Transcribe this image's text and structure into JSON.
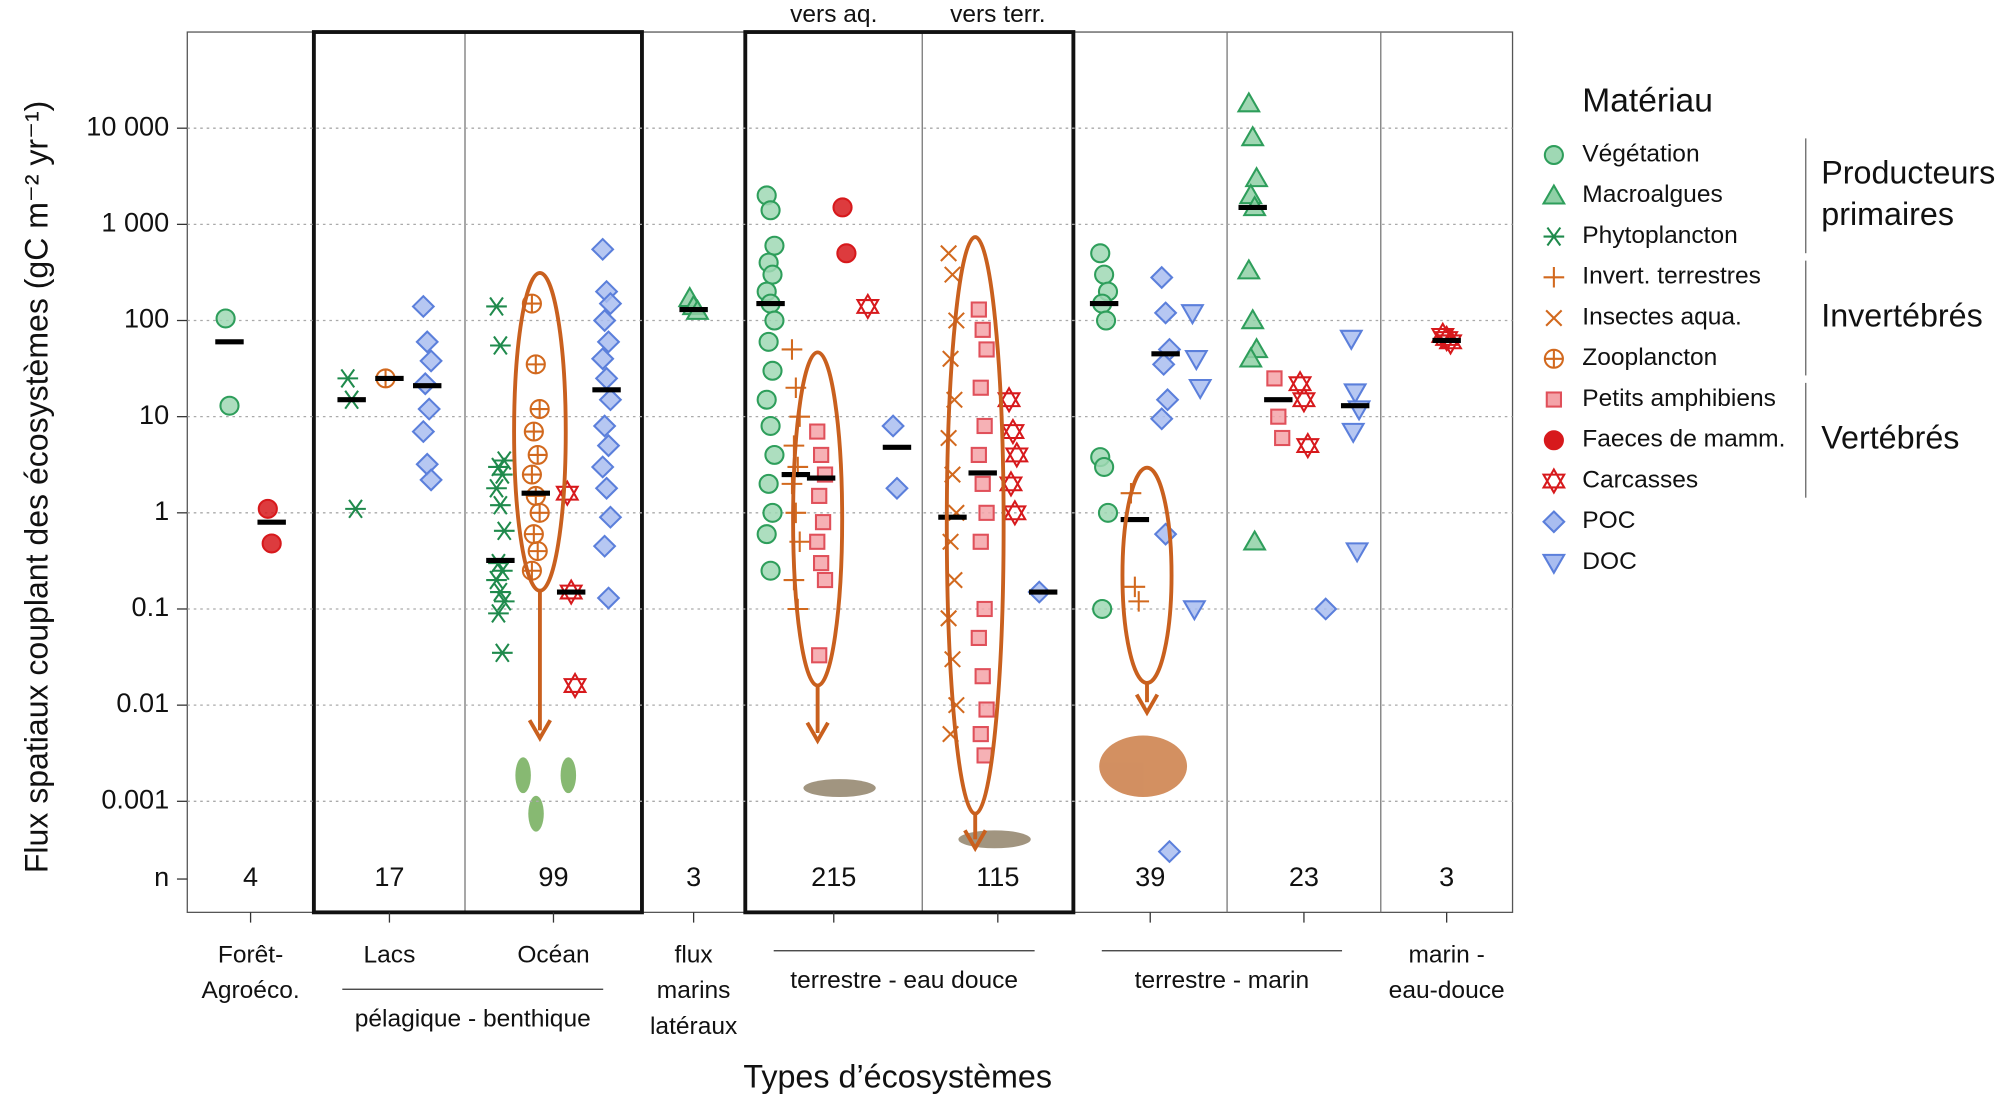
{
  "chart_data": {
    "type": "strip",
    "y_label": "Flux spatiaux couplant des écosystèmes (gC m⁻² yr⁻¹)",
    "x_label": "Types d’écosystèmes",
    "log_scale": true,
    "grid": true,
    "ylim": [
      7e-05,
      100000
    ],
    "yticks": [
      {
        "value": 10000,
        "label": "10 000"
      },
      {
        "value": 1000,
        "label": "1 000"
      },
      100,
      10,
      1,
      0.1,
      0.01,
      0.001
    ],
    "n_label": "n",
    "panels": [
      {
        "label": [
          "Forêt-",
          "Agroéco."
        ],
        "n": 4
      },
      {
        "label": [
          "Lacs"
        ],
        "n": 17
      },
      {
        "label": [
          "Océan"
        ],
        "n": 99
      },
      {
        "label": [
          "flux",
          "marins",
          "latéraux"
        ],
        "n": 3
      },
      {
        "top_label": "vers aq.",
        "n": 215
      },
      {
        "top_label": "vers terr.",
        "n": 115
      },
      {
        "n": 39
      },
      {
        "n": 23
      },
      {
        "label": [
          "marin -",
          "eau-douce"
        ],
        "n": 3
      }
    ],
    "group_labels": [
      {
        "text": "pélagique - benthique",
        "panels": [
          1,
          2
        ]
      },
      {
        "text": "terrestre - eau douce",
        "panels": [
          4,
          5
        ]
      },
      {
        "text": "terrestre - marin",
        "panels": [
          6,
          7
        ]
      }
    ],
    "legend_title": "Matériau",
    "legend_groups": [
      {
        "label": [
          "Producteurs",
          "primaires"
        ],
        "series": [
          0,
          2
        ]
      },
      {
        "label": [
          "Invertébrés"
        ],
        "series": [
          3,
          5
        ]
      },
      {
        "label": [
          "Vertébrés"
        ],
        "series": [
          6,
          8
        ]
      }
    ],
    "series": [
      {
        "name": "Végétation",
        "marker": "circle",
        "color": "#2e9e5b",
        "fill": "#9fd8b4",
        "values": [
          [
            105,
            13
          ],
          null,
          null,
          null,
          [
            2000,
            1400,
            600,
            400,
            300,
            200,
            150,
            100,
            60,
            30,
            15,
            8,
            4,
            2,
            1,
            0.6,
            0.25
          ],
          null,
          [
            500,
            300,
            200,
            150,
            100,
            3.8,
            3,
            1,
            0.1
          ],
          null,
          null
        ],
        "medians": [
          60,
          null,
          null,
          null,
          150,
          null,
          150,
          null,
          null
        ]
      },
      {
        "name": "Macroalgues",
        "marker": "triangle",
        "color": "#2e9e5b",
        "fill": "#8fd0a6",
        "values": [
          null,
          null,
          null,
          [
            170,
            140,
            125
          ],
          null,
          null,
          null,
          [
            18000,
            8000,
            3000,
            2000,
            1500,
            330,
            100,
            50,
            40,
            0.5
          ],
          null
        ],
        "medians": [
          null,
          null,
          null,
          130,
          null,
          null,
          null,
          1500,
          null
        ]
      },
      {
        "name": "Phytoplancton",
        "marker": "asterisk",
        "color": "#1f8a4c",
        "fill": "none",
        "values": [
          null,
          [
            25,
            15,
            1.1
          ],
          [
            140,
            55,
            3.5,
            3,
            2.5,
            1.8,
            1.2,
            0.65,
            0.3,
            0.25,
            0.2,
            0.15,
            0.12,
            0.09,
            0.035
          ],
          null,
          null,
          null,
          null,
          null,
          null
        ],
        "medians": [
          null,
          15,
          0.32,
          null,
          null,
          null,
          null,
          null,
          null
        ]
      },
      {
        "name": "Invert. terrestres",
        "marker": "plus",
        "color": "#d2691e",
        "fill": "none",
        "values": [
          null,
          null,
          null,
          null,
          [
            50,
            20,
            10,
            5,
            3,
            2,
            1,
            0.5,
            0.2,
            0.1
          ],
          null,
          [
            1.6,
            0.17,
            0.12
          ],
          null,
          null
        ],
        "medians": [
          null,
          null,
          null,
          null,
          2.5,
          null,
          0.85,
          null,
          null
        ]
      },
      {
        "name": "Insectes aqua.",
        "marker": "cross",
        "color": "#d2691e",
        "fill": "none",
        "values": [
          null,
          null,
          null,
          null,
          null,
          [
            500,
            300,
            100,
            40,
            15,
            6,
            2.5,
            1,
            0.5,
            0.2,
            0.08,
            0.03,
            0.01,
            0.005
          ],
          null,
          null,
          null
        ],
        "medians": [
          null,
          null,
          null,
          null,
          null,
          0.9,
          null,
          null,
          null
        ]
      },
      {
        "name": "Zooplancton",
        "marker": "circleplus",
        "color": "#d2691e",
        "fill": "none",
        "values": [
          null,
          [
            25
          ],
          [
            150,
            35,
            12,
            7,
            4,
            2.5,
            1.5,
            1,
            0.6,
            0.4,
            0.25
          ],
          null,
          null,
          null,
          null,
          null,
          null
        ],
        "medians": [
          null,
          25,
          1.6,
          null,
          null,
          null,
          null,
          null,
          null
        ]
      },
      {
        "name": "Petits amphibiens",
        "marker": "square",
        "color": "#e0505a",
        "fill": "#f4a3a8",
        "values": [
          null,
          null,
          null,
          null,
          [
            7,
            4,
            2.5,
            1.5,
            0.8,
            0.5,
            0.3,
            0.2,
            0.033
          ],
          [
            130,
            80,
            50,
            20,
            8,
            4,
            2,
            1,
            0.5,
            0.1,
            0.05,
            0.02,
            0.009,
            0.005,
            0.003
          ],
          null,
          [
            25,
            10,
            6
          ],
          null
        ],
        "medians": [
          null,
          null,
          null,
          null,
          2.3,
          2.6,
          null,
          15,
          null
        ]
      },
      {
        "name": "Faeces de mamm.",
        "marker": "dot",
        "color": "#d7191c",
        "fill": "#d7191c",
        "values": [
          [
            1.1,
            0.48
          ],
          null,
          null,
          null,
          [
            1500,
            500
          ],
          null,
          null,
          null,
          null
        ],
        "medians": [
          0.8,
          null,
          null,
          null,
          null,
          null,
          null,
          null,
          null
        ]
      },
      {
        "name": "Carcasses",
        "marker": "star",
        "color": "#d7191c",
        "fill": "none",
        "values": [
          null,
          null,
          [
            1.6,
            0.15,
            0.016
          ],
          null,
          [
            140
          ],
          [
            15,
            7,
            4,
            2,
            1
          ],
          null,
          [
            22,
            15,
            5
          ],
          [
            70,
            65,
            60
          ]
        ],
        "medians": [
          null,
          null,
          0.15,
          null,
          null,
          null,
          null,
          null,
          62
        ]
      },
      {
        "name": "POC",
        "marker": "diamond",
        "color": "#5b7fdb",
        "fill": "#a9bdf0",
        "values": [
          null,
          [
            140,
            60,
            38,
            22,
            12,
            7,
            3.2,
            2.2
          ],
          [
            550,
            200,
            150,
            100,
            60,
            40,
            25,
            15,
            8,
            5,
            3,
            1.8,
            0.9,
            0.45,
            0.13
          ],
          null,
          [
            8,
            1.8
          ],
          [
            0.15
          ],
          [
            280,
            120,
            50,
            35,
            15,
            9.5,
            0.6,
            0.0003
          ],
          [
            0.1
          ],
          null
        ],
        "medians": [
          null,
          21,
          19,
          null,
          4.8,
          0.15,
          45,
          null,
          null
        ]
      },
      {
        "name": "DOC",
        "marker": "tridown",
        "color": "#5b7fdb",
        "fill": "#a9bdf0",
        "values": [
          null,
          null,
          null,
          null,
          null,
          null,
          [
            120,
            40,
            20,
            0.1
          ],
          [
            65,
            18,
            12,
            7,
            0.4
          ],
          null
        ],
        "medians": [
          null,
          null,
          null,
          null,
          null,
          null,
          null,
          13,
          null
        ]
      }
    ]
  }
}
